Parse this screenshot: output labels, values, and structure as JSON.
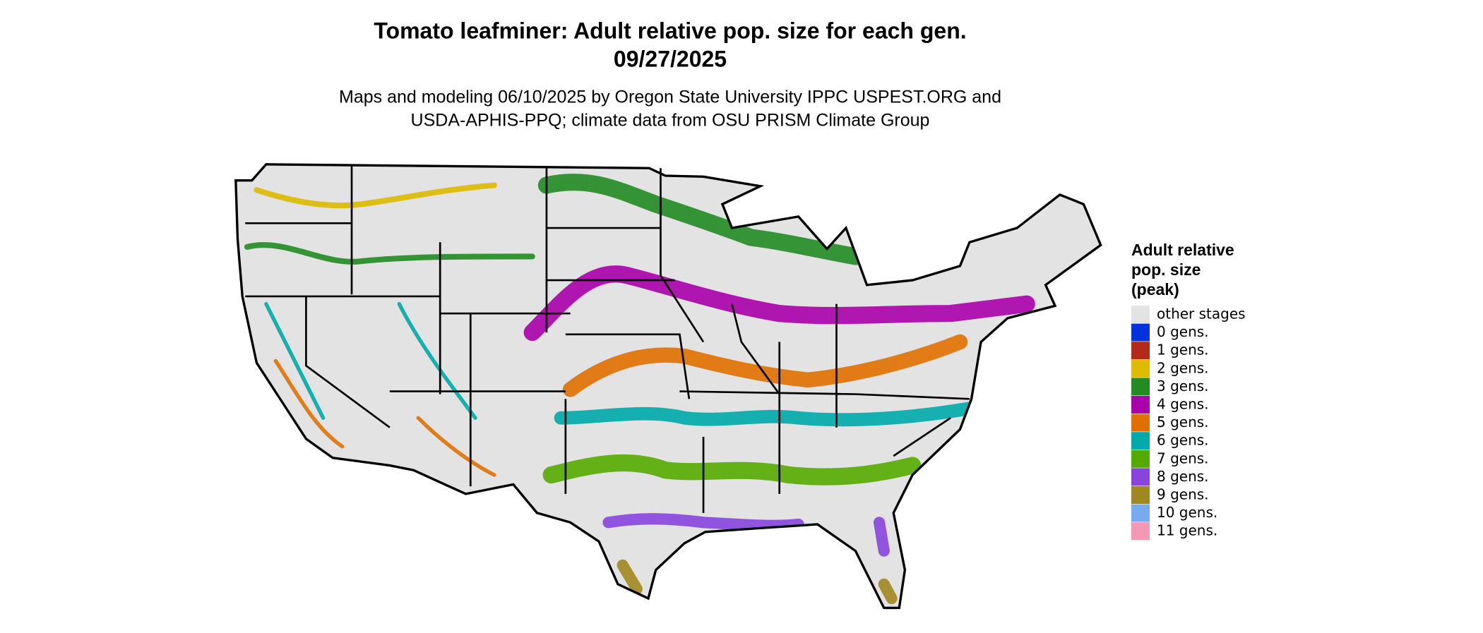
{
  "map": {
    "title": [
      "Tomato leafminer: Adult relative pop. size for each gen.",
      "09/27/2025"
    ],
    "subtitle": [
      "Maps and modeling 06/10/2025 by Oregon State University IPPC USPEST.ORG and",
      "USDA-APHIS-PPQ; climate data from OSU PRISM Climate Group"
    ],
    "legend": {
      "title": [
        "Adult relative",
        "pop. size",
        "(peak)"
      ],
      "items": [
        {
          "label": "other stages",
          "color": "#e3e3e3"
        },
        {
          "label": "0 gens.",
          "color": "#0033dd"
        },
        {
          "label": "1 gens.",
          "color": "#b22a1a"
        },
        {
          "label": "2 gens.",
          "color": "#ddbb00"
        },
        {
          "label": "3 gens.",
          "color": "#228b22"
        },
        {
          "label": "4 gens.",
          "color": "#aa00aa"
        },
        {
          "label": "5 gens.",
          "color": "#e07000"
        },
        {
          "label": "6 gens.",
          "color": "#00aaaa"
        },
        {
          "label": "7 gens.",
          "color": "#55aa00"
        },
        {
          "label": "8 gens.",
          "color": "#8844dd"
        },
        {
          "label": "9 gens.",
          "color": "#a08820"
        },
        {
          "label": "10 gens.",
          "color": "#77aaee"
        },
        {
          "label": "11 gens.",
          "color": "#f399b5"
        }
      ]
    }
  }
}
